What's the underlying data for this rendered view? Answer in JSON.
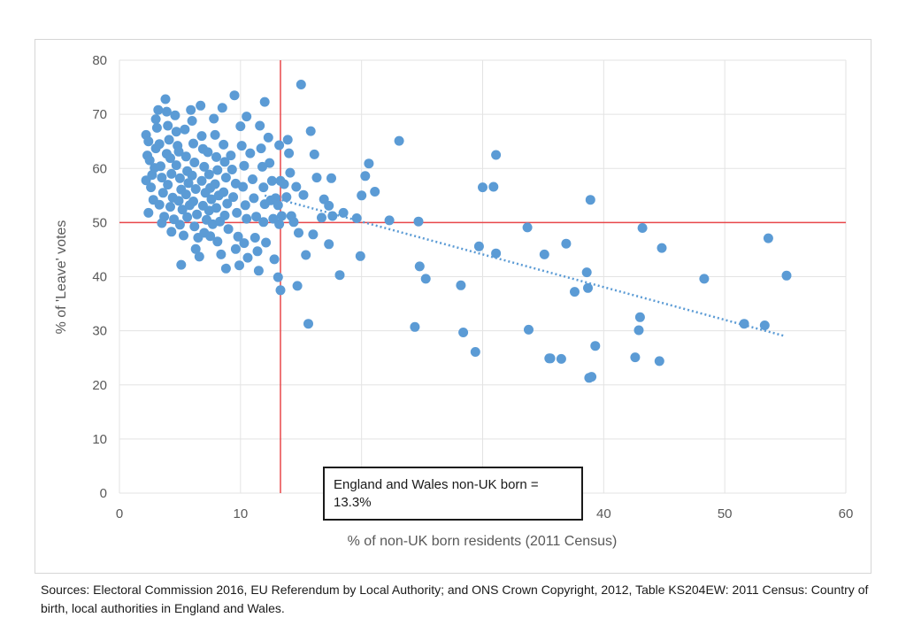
{
  "chart_data": {
    "type": "scatter",
    "xlabel": "% of non-UK born residents (2011 Census)",
    "ylabel": "% of 'Leave' votes",
    "xlim": [
      0,
      60
    ],
    "ylim": [
      0,
      80
    ],
    "xticks": [
      0,
      10,
      20,
      30,
      40,
      50,
      60
    ],
    "yticks": [
      0,
      10,
      20,
      30,
      40,
      50,
      60,
      70,
      80
    ],
    "grid": true,
    "marker_color": "#5b9bd5",
    "reference_line_color": "#e8474a",
    "trendline_color": "#5b9bd5",
    "reference_lines": {
      "x": 13.3,
      "y": 50
    },
    "trendline": {
      "x": [
        12,
        55
      ],
      "y": [
        55,
        29
      ]
    },
    "annotation": "England and Wales non-UK born = 13.3%",
    "points": [
      [
        2.2,
        66.2
      ],
      [
        2.4,
        65.0
      ],
      [
        2.3,
        62.4
      ],
      [
        2.5,
        61.5
      ],
      [
        2.2,
        57.8
      ],
      [
        2.6,
        56.5
      ],
      [
        2.7,
        58.8
      ],
      [
        2.4,
        51.8
      ],
      [
        2.8,
        54.2
      ],
      [
        2.9,
        60.1
      ],
      [
        3.0,
        63.7
      ],
      [
        3.1,
        67.5
      ],
      [
        3.2,
        70.8
      ],
      [
        3.0,
        69.1
      ],
      [
        3.3,
        64.5
      ],
      [
        3.4,
        60.4
      ],
      [
        3.5,
        58.3
      ],
      [
        3.6,
        55.5
      ],
      [
        3.3,
        53.3
      ],
      [
        3.7,
        51.1
      ],
      [
        3.5,
        49.9
      ],
      [
        3.8,
        72.8
      ],
      [
        3.9,
        70.5
      ],
      [
        4.0,
        67.9
      ],
      [
        4.1,
        65.3
      ],
      [
        3.9,
        62.7
      ],
      [
        4.2,
        61.9
      ],
      [
        4.3,
        59.0
      ],
      [
        4.0,
        57.0
      ],
      [
        4.4,
        54.6
      ],
      [
        4.2,
        52.9
      ],
      [
        4.5,
        50.6
      ],
      [
        4.3,
        48.3
      ],
      [
        4.6,
        69.8
      ],
      [
        4.7,
        66.8
      ],
      [
        4.8,
        64.2
      ],
      [
        4.9,
        63.1
      ],
      [
        4.7,
        60.6
      ],
      [
        5.0,
        58.2
      ],
      [
        5.1,
        56.1
      ],
      [
        4.9,
        54.0
      ],
      [
        5.2,
        52.4
      ],
      [
        5.0,
        49.6
      ],
      [
        5.3,
        47.6
      ],
      [
        5.1,
        42.2
      ],
      [
        5.4,
        67.2
      ],
      [
        5.5,
        62.2
      ],
      [
        5.6,
        59.5
      ],
      [
        5.7,
        57.3
      ],
      [
        5.5,
        55.2
      ],
      [
        5.8,
        53.2
      ],
      [
        5.6,
        51.0
      ],
      [
        5.9,
        70.8
      ],
      [
        6.0,
        68.8
      ],
      [
        6.1,
        64.6
      ],
      [
        6.2,
        61.1
      ],
      [
        6.0,
        58.7
      ],
      [
        6.3,
        56.2
      ],
      [
        6.1,
        53.9
      ],
      [
        6.4,
        51.5
      ],
      [
        6.2,
        49.3
      ],
      [
        6.5,
        47.2
      ],
      [
        6.3,
        45.1
      ],
      [
        6.6,
        43.7
      ],
      [
        6.7,
        71.6
      ],
      [
        6.8,
        66.0
      ],
      [
        6.9,
        63.6
      ],
      [
        7.0,
        60.3
      ],
      [
        6.8,
        57.7
      ],
      [
        7.1,
        55.5
      ],
      [
        6.9,
        53.1
      ],
      [
        7.2,
        50.5
      ],
      [
        7.0,
        48.1
      ],
      [
        7.3,
        63.0
      ],
      [
        7.4,
        58.9
      ],
      [
        7.5,
        56.4
      ],
      [
        7.6,
        54.3
      ],
      [
        7.4,
        52.2
      ],
      [
        7.7,
        49.7
      ],
      [
        7.5,
        47.5
      ],
      [
        7.8,
        69.2
      ],
      [
        7.9,
        66.2
      ],
      [
        8.0,
        62.1
      ],
      [
        8.1,
        59.7
      ],
      [
        7.9,
        57.1
      ],
      [
        8.2,
        55.0
      ],
      [
        8.0,
        52.7
      ],
      [
        8.3,
        50.2
      ],
      [
        8.1,
        46.5
      ],
      [
        8.4,
        44.1
      ],
      [
        8.5,
        71.2
      ],
      [
        8.6,
        64.4
      ],
      [
        8.7,
        61.2
      ],
      [
        8.8,
        58.3
      ],
      [
        8.6,
        55.6
      ],
      [
        8.9,
        53.5
      ],
      [
        8.7,
        51.3
      ],
      [
        9.0,
        48.8
      ],
      [
        8.8,
        41.5
      ],
      [
        9.2,
        62.4
      ],
      [
        9.3,
        59.8
      ],
      [
        9.5,
        73.5
      ],
      [
        9.6,
        57.2
      ],
      [
        9.4,
        54.7
      ],
      [
        9.7,
        51.8
      ],
      [
        9.8,
        47.4
      ],
      [
        9.6,
        45.1
      ],
      [
        9.9,
        42.1
      ],
      [
        10.0,
        67.8
      ],
      [
        10.1,
        64.2
      ],
      [
        10.3,
        60.5
      ],
      [
        10.2,
        56.6
      ],
      [
        10.4,
        53.2
      ],
      [
        10.5,
        50.7
      ],
      [
        10.3,
        46.2
      ],
      [
        10.6,
        43.5
      ],
      [
        10.5,
        69.6
      ],
      [
        10.8,
        62.8
      ],
      [
        11.0,
        58.0
      ],
      [
        11.1,
        54.5
      ],
      [
        11.3,
        51.1
      ],
      [
        11.2,
        47.2
      ],
      [
        11.4,
        44.7
      ],
      [
        11.5,
        41.1
      ],
      [
        11.6,
        67.9
      ],
      [
        11.7,
        63.7
      ],
      [
        11.8,
        60.3
      ],
      [
        11.9,
        56.5
      ],
      [
        12.0,
        53.4
      ],
      [
        11.9,
        50.1
      ],
      [
        12.1,
        46.3
      ],
      [
        12.0,
        72.3
      ],
      [
        12.3,
        65.7
      ],
      [
        12.4,
        61.0
      ],
      [
        12.6,
        57.7
      ],
      [
        12.5,
        54.1
      ],
      [
        12.7,
        50.7
      ],
      [
        12.8,
        43.2
      ],
      [
        12.9,
        54.5
      ],
      [
        13.1,
        53.2
      ],
      [
        13.2,
        64.3
      ],
      [
        13.3,
        57.7
      ],
      [
        13.4,
        51.2
      ],
      [
        13.2,
        49.7
      ],
      [
        13.1,
        39.9
      ],
      [
        13.3,
        37.5
      ],
      [
        13.6,
        57.1
      ],
      [
        13.9,
        65.3
      ],
      [
        14.0,
        62.8
      ],
      [
        14.1,
        59.2
      ],
      [
        13.8,
        54.7
      ],
      [
        14.2,
        51.2
      ],
      [
        14.4,
        50.1
      ],
      [
        14.6,
        56.6
      ],
      [
        14.8,
        48.1
      ],
      [
        14.7,
        38.3
      ],
      [
        15.0,
        75.5
      ],
      [
        15.2,
        55.1
      ],
      [
        15.4,
        44.0
      ],
      [
        15.6,
        31.3
      ],
      [
        15.8,
        66.9
      ],
      [
        16.1,
        62.6
      ],
      [
        16.3,
        58.3
      ],
      [
        16.0,
        47.8
      ],
      [
        16.7,
        50.9
      ],
      [
        16.9,
        54.3
      ],
      [
        17.3,
        53.1
      ],
      [
        17.5,
        58.2
      ],
      [
        17.6,
        51.2
      ],
      [
        17.3,
        46.0
      ],
      [
        18.2,
        40.3
      ],
      [
        18.5,
        51.8
      ],
      [
        19.6,
        50.8
      ],
      [
        20.0,
        55.0
      ],
      [
        19.9,
        43.8
      ],
      [
        20.3,
        58.6
      ],
      [
        20.6,
        60.9
      ],
      [
        21.1,
        55.7
      ],
      [
        22.3,
        50.4
      ],
      [
        23.1,
        65.1
      ],
      [
        24.4,
        30.7
      ],
      [
        24.7,
        50.2
      ],
      [
        24.8,
        41.9
      ],
      [
        25.3,
        39.6
      ],
      [
        28.2,
        38.4
      ],
      [
        28.4,
        29.7
      ],
      [
        29.4,
        26.1
      ],
      [
        29.7,
        45.6
      ],
      [
        30.0,
        56.5
      ],
      [
        30.9,
        56.6
      ],
      [
        31.1,
        62.5
      ],
      [
        31.1,
        44.3
      ],
      [
        33.7,
        49.1
      ],
      [
        33.8,
        30.2
      ],
      [
        35.1,
        44.1
      ],
      [
        35.5,
        24.9
      ],
      [
        35.6,
        24.9
      ],
      [
        36.5,
        24.8
      ],
      [
        36.9,
        46.1
      ],
      [
        37.6,
        37.2
      ],
      [
        38.6,
        40.8
      ],
      [
        38.7,
        37.9
      ],
      [
        38.8,
        21.3
      ],
      [
        39.0,
        21.5
      ],
      [
        38.9,
        54.2
      ],
      [
        39.3,
        27.2
      ],
      [
        42.6,
        25.1
      ],
      [
        42.9,
        30.1
      ],
      [
        43.0,
        32.5
      ],
      [
        43.2,
        49.0
      ],
      [
        44.6,
        24.4
      ],
      [
        44.8,
        45.3
      ],
      [
        48.3,
        39.6
      ],
      [
        51.6,
        31.3
      ],
      [
        53.3,
        31.0
      ],
      [
        53.6,
        47.1
      ],
      [
        55.1,
        40.2
      ]
    ]
  },
  "source_note": "Sources: Electoral Commission 2016, EU Referendum by Local Authority; and ONS Crown Copyright, 2012, Table KS204EW: 2011 Census: Country of birth, local authorities in England and Wales."
}
